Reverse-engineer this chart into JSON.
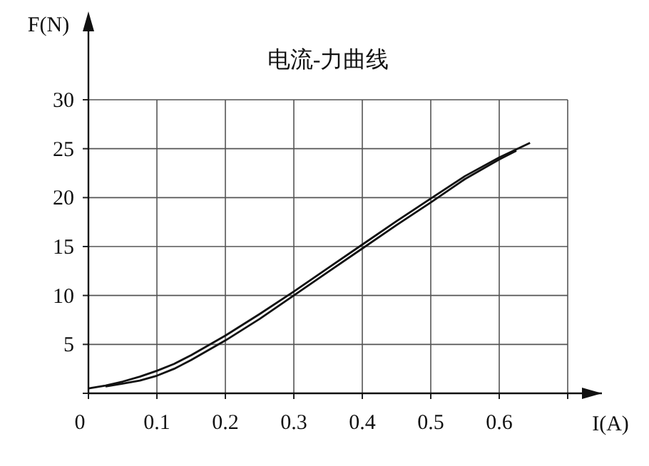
{
  "chart_data": {
    "type": "line",
    "title": "电流-力曲线",
    "xlabel": "I(A)",
    "ylabel": "F(N)",
    "xlim": [
      0,
      0.7
    ],
    "ylim": [
      0,
      30
    ],
    "xticks": [
      0,
      0.1,
      0.2,
      0.3,
      0.4,
      0.5,
      0.6,
      {
        "value": 0.7,
        "label": null
      }
    ],
    "yticks": [
      {
        "value": 0,
        "label": null
      },
      5,
      10,
      15,
      20,
      25,
      30
    ],
    "grid": true,
    "line_style": "solid",
    "marker": "none",
    "series": [
      {
        "color": "#111111",
        "x": [
          0,
          0.025,
          0.05,
          0.075,
          0.1,
          0.125,
          0.15,
          0.2,
          0.25,
          0.3,
          0.35,
          0.4,
          0.45,
          0.5,
          0.55,
          0.6,
          0.645
        ],
        "values": [
          0.5,
          0.8,
          1.2,
          1.7,
          2.3,
          3.0,
          3.9,
          5.9,
          8.1,
          10.4,
          12.8,
          15.2,
          17.6,
          19.9,
          22.2,
          24.1,
          25.6
        ]
      },
      {
        "color": "#111111",
        "x": [
          0.025,
          0.05,
          0.075,
          0.1,
          0.125,
          0.15,
          0.2,
          0.25,
          0.3,
          0.35,
          0.4,
          0.45,
          0.5,
          0.55,
          0.6,
          0.625
        ],
        "values": [
          0.7,
          1.0,
          1.3,
          1.8,
          2.5,
          3.4,
          5.4,
          7.6,
          10.0,
          12.4,
          14.8,
          17.2,
          19.5,
          21.9,
          23.9,
          24.8
        ]
      }
    ]
  }
}
